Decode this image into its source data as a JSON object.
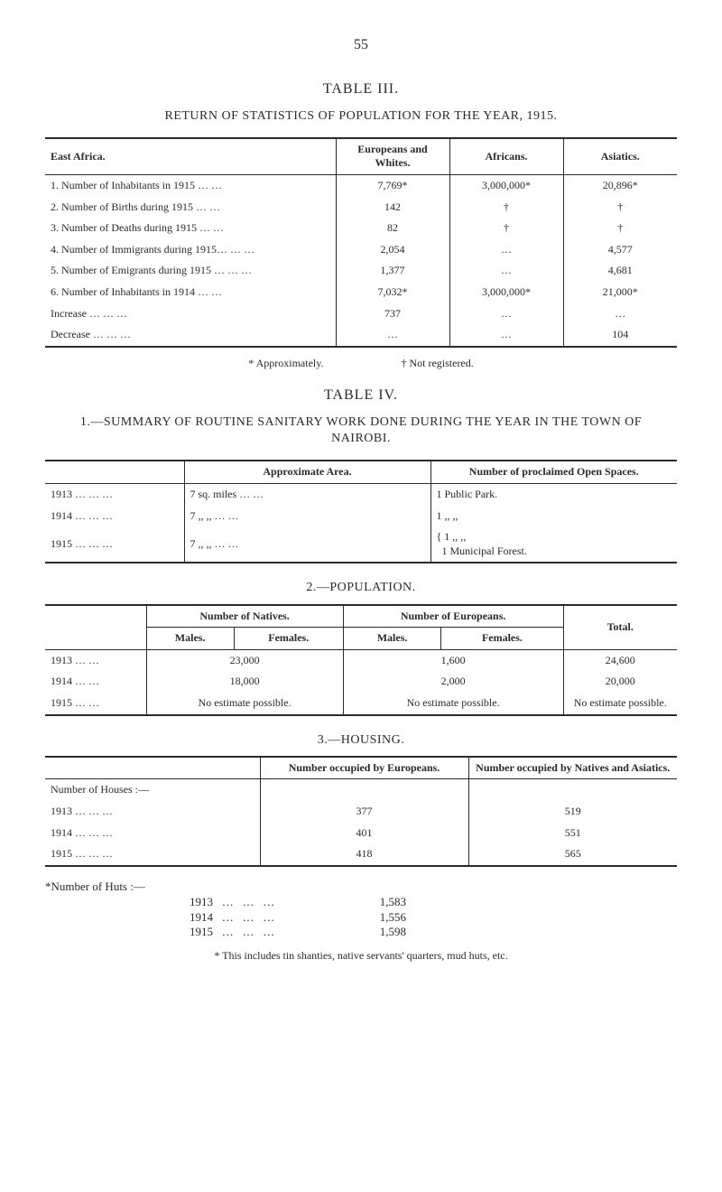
{
  "page_number": "55",
  "table3": {
    "title": "TABLE III.",
    "heading": "RETURN OF STATISTICS OF POPULATION FOR THE YEAR, 1915.",
    "columns": [
      "East Africa.",
      "Europeans and Whites.",
      "Africans.",
      "Asiatics."
    ],
    "rows": [
      {
        "label": "1. Number of Inhabitants in 1915",
        "c1": "7,769*",
        "c2": "3,000,000*",
        "c3": "20,896*"
      },
      {
        "label": "2. Number of Births during 1915",
        "c1": "142",
        "c2": "†",
        "c3": "†"
      },
      {
        "label": "3. Number of Deaths during 1915",
        "c1": "82",
        "c2": "†",
        "c3": "†"
      },
      {
        "label": "4. Number of Immigrants during 1915…",
        "c1": "2,054",
        "c2": "…",
        "c3": "4,577"
      },
      {
        "label": "5. Number of Emigrants during 1915 …",
        "c1": "1,377",
        "c2": "…",
        "c3": "4,681"
      },
      {
        "label": "6. Number of Inhabitants in 1914",
        "c1": "7,032*",
        "c2": "3,000,000*",
        "c3": "21,000*"
      },
      {
        "label": "        Increase …",
        "c1": "737",
        "c2": "…",
        "c3": "…"
      },
      {
        "label": "        Decrease …",
        "c1": "…",
        "c2": "…",
        "c3": "104"
      }
    ],
    "footnote_left": "* Approximately.",
    "footnote_right": "† Not registered."
  },
  "table4": {
    "title": "TABLE IV.",
    "heading": "1.—SUMMARY OF ROUTINE SANITARY WORK DONE DURING THE YEAR IN THE TOWN OF NAIROBI.",
    "columns_inner": [
      "Approximate Area.",
      "Number of proclaimed Open Spaces."
    ],
    "rows": [
      {
        "y": "1913",
        "area": "7 sq. miles",
        "spaces": "1 Public Park."
      },
      {
        "y": "1914",
        "area": "7  ,,    ,,",
        "spaces": "1    ,,       ,,"
      },
      {
        "y": "1915",
        "area": "7  ,,    ,,",
        "spaces_a": "1    ,,       ,,",
        "spaces_b": "1 Municipal Forest."
      }
    ]
  },
  "population": {
    "heading": "2.—POPULATION.",
    "group_headers": [
      "Number of Natives.",
      "Number of Europeans.",
      "Total."
    ],
    "sub_headers": [
      "Males.",
      "Females.",
      "Males.",
      "Females."
    ],
    "rows": [
      {
        "y": "1913",
        "nat": "23,000",
        "eur": "1,600",
        "tot": "24,600"
      },
      {
        "y": "1914",
        "nat": "18,000",
        "eur": "2,000",
        "tot": "20,000"
      },
      {
        "y": "1915",
        "nat": "No estimate possible.",
        "eur": "No estimate possible.",
        "tot": "No estimate possible."
      }
    ]
  },
  "housing": {
    "heading": "3.—HOUSING.",
    "columns": [
      "",
      "Number occupied by Europeans.",
      "Number occupied by Natives and Asiatics."
    ],
    "group_label": "Number of Houses :—",
    "rows": [
      {
        "y": "1913",
        "e": "377",
        "n": "519"
      },
      {
        "y": "1914",
        "e": "401",
        "n": "551"
      },
      {
        "y": "1915",
        "e": "418",
        "n": "565"
      }
    ],
    "huts_label": "*Number of Huts :—",
    "huts": [
      {
        "y": "1913",
        "v": "1,583"
      },
      {
        "y": "1914",
        "v": "1,556"
      },
      {
        "y": "1915",
        "v": "1,598"
      }
    ],
    "footnote": "* This includes tin shanties, native servants' quarters, mud huts, etc."
  }
}
